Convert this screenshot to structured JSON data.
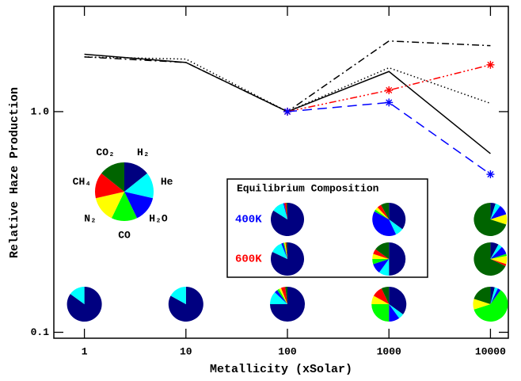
{
  "chart_data": {
    "type": "line",
    "xlabel": "Metallicity (xSolar)",
    "ylabel": "Relative Haze Production",
    "xscale": "log",
    "yscale": "log",
    "xlim": [
      0.5,
      15000
    ],
    "ylim": [
      0.094,
      3.0
    ],
    "xticks": [
      1,
      10,
      100,
      1000,
      10000
    ],
    "yticks": [
      {
        "value": 0.1,
        "label": "0.1"
      },
      {
        "value": 1.0,
        "label": "1.0"
      }
    ],
    "series": [
      {
        "color": "#000000",
        "dash": "solid",
        "x": [
          1,
          10,
          100,
          1000,
          10000
        ],
        "values": [
          1.82,
          1.67,
          1.0,
          1.52,
          0.645
        ]
      },
      {
        "color": "#000000",
        "dash": "dotted",
        "x": [
          1,
          10,
          100,
          1000,
          10000
        ],
        "values": [
          1.77,
          1.73,
          1.0,
          1.58,
          1.09
        ]
      },
      {
        "color": "#000000",
        "dash": "dashdot",
        "x": [
          1,
          10,
          100,
          1000,
          10000
        ],
        "values": [
          1.77,
          1.67,
          1.0,
          2.09,
          1.99
        ]
      },
      {
        "color": "#ff0000",
        "dash": "dashdotdotdot",
        "marker": "asterisk",
        "x": [
          100,
          1000,
          10000
        ],
        "values": [
          1.0,
          1.25,
          1.63
        ]
      },
      {
        "color": "#0000ff",
        "dash": "dashed",
        "marker": "asterisk",
        "x": [
          100,
          1000,
          10000
        ],
        "values": [
          1.0,
          1.1,
          0.52
        ]
      }
    ],
    "species": [
      "H₂",
      "He",
      "H₂O",
      "CO",
      "N₂",
      "CH₄",
      "CO₂"
    ],
    "species_colors": [
      "#000080",
      "#00ffff",
      "#0000ff",
      "#00ff00",
      "#ffff00",
      "#ff0000",
      "#006400"
    ],
    "key_pie": [
      1,
      1,
      1,
      1,
      1,
      1,
      1
    ],
    "haze_pies": [
      {
        "x": 1,
        "values": [
          0.85,
          0.15,
          0,
          0,
          0,
          0,
          0
        ]
      },
      {
        "x": 10,
        "values": [
          0.83,
          0.17,
          0,
          0,
          0,
          0,
          0
        ]
      },
      {
        "x": 100,
        "values": [
          0.75,
          0.12,
          0.03,
          0.02,
          0.02,
          0.04,
          0.02
        ]
      },
      {
        "x": 1000,
        "values": [
          0.35,
          0.05,
          0.1,
          0.25,
          0.08,
          0.1,
          0.07
        ]
      },
      {
        "x": 10000,
        "values": [
          0.04,
          0.03,
          0.03,
          0.6,
          0.1,
          0,
          0.2
        ]
      }
    ],
    "equilibrium": {
      "title": "Equilibrium Composition",
      "rows": [
        {
          "label": "400K",
          "color": "#0000ff",
          "pies": [
            {
              "x": 100,
              "values": [
                0.84,
                0.12,
                0.01,
                0,
                0,
                0.02,
                0.01
              ]
            },
            {
              "x": 1000,
              "values": [
                0.35,
                0.08,
                0.4,
                0.02,
                0.03,
                0.04,
                0.08
              ]
            },
            {
              "x": 10000,
              "values": [
                0.05,
                0.05,
                0.1,
                0,
                0.1,
                0,
                0.7
              ]
            }
          ]
        },
        {
          "label": "600K",
          "color": "#ff0000",
          "pies": [
            {
              "x": 100,
              "values": [
                0.82,
                0.12,
                0.02,
                0.01,
                0.01,
                0.01,
                0.01
              ]
            },
            {
              "x": 1000,
              "values": [
                0.5,
                0.1,
                0.1,
                0.05,
                0.05,
                0.05,
                0.15
              ]
            },
            {
              "x": 10000,
              "values": [
                0.08,
                0.04,
                0.08,
                0.02,
                0.08,
                0.02,
                0.68
              ]
            }
          ]
        }
      ]
    }
  }
}
